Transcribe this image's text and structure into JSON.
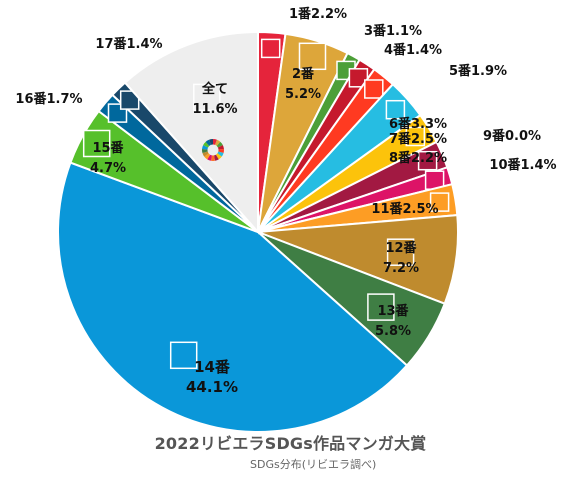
{
  "title": "2022リビエラSDGs作品マンガ大賞",
  "subtitle": "SDGs分布(リビエラ調べ)",
  "chart_data": {
    "type": "pie",
    "title": "2022リビエラSDGs作品マンガ大賞",
    "subtitle": "SDGs分布(リビエラ調べ)",
    "slices": [
      {
        "label": "1番",
        "value": 2.2,
        "color": "#E5243B"
      },
      {
        "label": "2番",
        "value": 5.2,
        "color": "#DDA63A"
      },
      {
        "label": "3番",
        "value": 1.1,
        "color": "#4C9F38"
      },
      {
        "label": "4番",
        "value": 1.4,
        "color": "#C5192D"
      },
      {
        "label": "5番",
        "value": 1.9,
        "color": "#FF3A21"
      },
      {
        "label": "6番",
        "value": 3.3,
        "color": "#26BDE2"
      },
      {
        "label": "7番",
        "value": 2.5,
        "color": "#FCC30B"
      },
      {
        "label": "8番",
        "value": 2.2,
        "color": "#A21942"
      },
      {
        "label": "9番",
        "value": 0.0,
        "color": "#FD6925"
      },
      {
        "label": "10番",
        "value": 1.4,
        "color": "#DD1367"
      },
      {
        "label": "11番",
        "value": 2.5,
        "color": "#FD9D24"
      },
      {
        "label": "12番",
        "value": 7.2,
        "color": "#BF8B2E"
      },
      {
        "label": "13番",
        "value": 5.8,
        "color": "#3F7E44"
      },
      {
        "label": "14番",
        "value": 44.1,
        "color": "#0A97D9"
      },
      {
        "label": "15番",
        "value": 4.7,
        "color": "#56C02B"
      },
      {
        "label": "16番",
        "value": 1.7,
        "color": "#00689D"
      },
      {
        "label": "17番",
        "value": 1.4,
        "color": "#19486A"
      },
      {
        "label": "全て",
        "value": 11.6,
        "color": "#EEEEEE"
      }
    ]
  }
}
